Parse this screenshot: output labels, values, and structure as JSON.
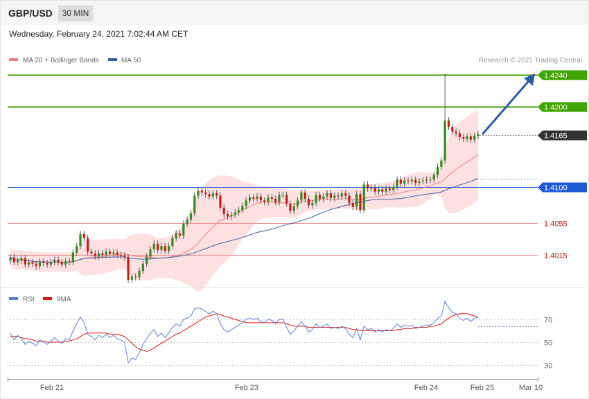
{
  "header": {
    "symbol": "GBP/USD",
    "timeframe": "30 MIN",
    "datetime": "Wednesday, February 24, 2021 7:02:44 AM CET"
  },
  "legend": {
    "items": [
      {
        "label": "MA 20 + Bollinger Bands",
        "color": "#f08080"
      },
      {
        "label": "MA 50",
        "color": "#3a5fa8"
      }
    ],
    "copyright": "Research © 2021 Trading Central"
  },
  "rsi_legend": {
    "items": [
      {
        "label": "RSI",
        "color": "#5b7fd6"
      },
      {
        "label": "9MA",
        "color": "#dd1010"
      }
    ]
  },
  "colors": {
    "target_green": "#3fa300",
    "current_dark": "#333333",
    "pivot_blue": "#1f5ad8",
    "support_red": "#cc1111",
    "up_candle": "#2e8b1e",
    "down_candle": "#cc1a1a",
    "arrow": "#2a5caa"
  },
  "chart_data": [
    {
      "type": "candlestick",
      "title": "GBP/USD",
      "x_tick_labels": [
        "Feb 21",
        "Feb 23",
        "Feb 24",
        "Feb 25",
        "Mar 10"
      ],
      "ylim": [
        1.397,
        1.425
      ],
      "levels": [
        {
          "label": "1.4240",
          "value": 1.424,
          "kind": "resistance"
        },
        {
          "label": "1.4200",
          "value": 1.42,
          "kind": "resistance"
        },
        {
          "label": "1.4165",
          "value": 1.4165,
          "kind": "current"
        },
        {
          "label": "1.4100",
          "value": 1.41,
          "kind": "pivot"
        },
        {
          "label": "1.4055",
          "value": 1.4055,
          "kind": "support"
        },
        {
          "label": "1.4015",
          "value": 1.4015,
          "kind": "support"
        }
      ],
      "closes": [
        1.4012,
        1.4006,
        1.4008,
        1.4011,
        1.4003,
        1.4006,
        1.4004,
        1.4001,
        1.4007,
        1.4005,
        1.4003,
        1.4006,
        1.4009,
        1.4006,
        1.4003,
        1.4007,
        1.4006,
        1.4018,
        1.4026,
        1.4041,
        1.4036,
        1.4019,
        1.4017,
        1.4013,
        1.4017,
        1.4015,
        1.4019,
        1.4016,
        1.4018,
        1.4015,
        1.4014,
        1.4012,
        1.3984,
        1.3988,
        1.3987,
        1.3995,
        1.4004,
        1.4013,
        1.4022,
        1.4029,
        1.4021,
        1.4026,
        1.402,
        1.4026,
        1.4036,
        1.4042,
        1.4039,
        1.4054,
        1.4059,
        1.4067,
        1.4089,
        1.4095,
        1.4093,
        1.4091,
        1.4088,
        1.4092,
        1.4089,
        1.4074,
        1.4066,
        1.4063,
        1.4065,
        1.4068,
        1.4071,
        1.4076,
        1.4083,
        1.4087,
        1.4085,
        1.4088,
        1.4083,
        1.4081,
        1.4087,
        1.4085,
        1.4081,
        1.409,
        1.409,
        1.4079,
        1.407,
        1.4076,
        1.4083,
        1.4093,
        1.4085,
        1.4077,
        1.408,
        1.409,
        1.4085,
        1.4088,
        1.4092,
        1.4086,
        1.4089,
        1.4088,
        1.4092,
        1.4089,
        1.408,
        1.4075,
        1.4091,
        1.4071,
        1.4103,
        1.4098,
        1.4099,
        1.4094,
        1.4097,
        1.4094,
        1.4098,
        1.4096,
        1.41,
        1.4109,
        1.4104,
        1.4108,
        1.4107,
        1.4109,
        1.4105,
        1.4107,
        1.4108,
        1.4109,
        1.4109,
        1.4115,
        1.4125,
        1.4133,
        1.4183,
        1.4175,
        1.4169,
        1.4167,
        1.4162,
        1.416,
        1.4163,
        1.4159,
        1.4164,
        1.4166
      ],
      "rsi": {
        "levels": [
          70,
          50,
          30
        ],
        "values": [
          58,
          52,
          56,
          53,
          48,
          51,
          49,
          47,
          52,
          50,
          48,
          51,
          54,
          51,
          49,
          53,
          52,
          60,
          66,
          72,
          67,
          57,
          55,
          52,
          56,
          54,
          57,
          54,
          56,
          53,
          52,
          50,
          32,
          36,
          35,
          41,
          48,
          53,
          58,
          61,
          55,
          58,
          54,
          58,
          63,
          66,
          64,
          70,
          71,
          73,
          79,
          80,
          79,
          77,
          75,
          77,
          75,
          66,
          61,
          59,
          61,
          63,
          65,
          67,
          70,
          71,
          70,
          71,
          68,
          67,
          70,
          69,
          66,
          70,
          70,
          63,
          57,
          60,
          64,
          68,
          64,
          59,
          61,
          66,
          63,
          64,
          66,
          62,
          63,
          62,
          64,
          62,
          57,
          54,
          62,
          52,
          64,
          61,
          62,
          59,
          61,
          59,
          61,
          60,
          62,
          66,
          63,
          65,
          64,
          65,
          62,
          63,
          64,
          65,
          65,
          67,
          71,
          73,
          86,
          80,
          76,
          75,
          71,
          69,
          71,
          68,
          71,
          72
        ],
        "ma9": [
          55,
          55,
          55,
          54,
          53,
          53,
          52,
          51,
          51,
          51,
          50,
          50,
          50,
          50,
          50,
          51,
          51,
          52,
          53,
          55,
          57,
          58,
          58,
          58,
          58,
          58,
          58,
          57,
          57,
          57,
          56,
          55,
          52,
          49,
          46,
          44,
          43,
          42,
          43,
          45,
          47,
          49,
          51,
          53,
          55,
          57,
          58,
          60,
          62,
          64,
          66,
          68,
          70,
          72,
          73,
          74,
          75,
          74,
          73,
          72,
          71,
          70,
          69,
          68,
          67,
          67,
          67,
          67,
          67,
          67,
          67,
          67,
          67,
          67,
          67,
          66,
          65,
          64,
          64,
          64,
          64,
          63,
          63,
          63,
          63,
          63,
          63,
          63,
          63,
          63,
          63,
          63,
          62,
          61,
          61,
          60,
          60,
          60,
          60,
          60,
          60,
          60,
          60,
          60,
          60,
          61,
          61,
          62,
          62,
          62,
          63,
          63,
          63,
          63,
          64,
          64,
          65,
          66,
          69,
          71,
          73,
          74,
          75,
          75,
          75,
          74,
          73,
          72
        ]
      }
    }
  ]
}
